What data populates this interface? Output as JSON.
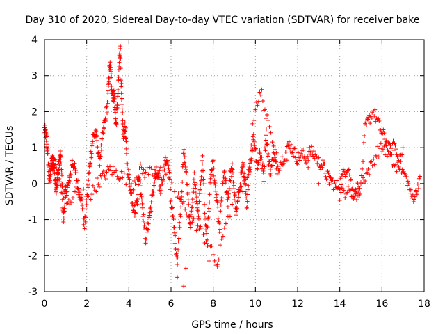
{
  "chart_data": {
    "type": "scatter",
    "title": "Day 310 of 2020, Sidereal Day-to-day VTEC variation (SDTVAR) for receiver bake",
    "xlabel": "GPS time / hours",
    "ylabel": "SDTVAR / TECUs",
    "xlim": [
      0,
      18
    ],
    "ylim": [
      -3,
      4
    ],
    "x_ticks": [
      0,
      2,
      4,
      6,
      8,
      10,
      12,
      14,
      16,
      18
    ],
    "y_ticks": [
      -3,
      -2,
      -1,
      0,
      1,
      2,
      3,
      4
    ],
    "x_tick_labels": [
      "0",
      "2",
      "4",
      "6",
      "8",
      "10",
      "12",
      "14",
      "16",
      "18"
    ],
    "y_tick_labels": [
      "-3",
      "-2",
      "-1",
      "0",
      "1",
      "2",
      "3",
      "4"
    ],
    "grid": true,
    "marker": "+",
    "marker_color": "#ff0000",
    "series": [
      {
        "name": "SDTVAR",
        "x": [
          0.0,
          0.05,
          0.1,
          0.15,
          0.2,
          0.25,
          0.3,
          0.35,
          0.4,
          0.45,
          0.5,
          0.55,
          0.6,
          0.65,
          0.7,
          0.75,
          0.8,
          0.85,
          0.9,
          0.95,
          1.0,
          1.1,
          1.2,
          1.3,
          1.4,
          1.5,
          1.6,
          1.7,
          1.8,
          1.9,
          2.0,
          2.1,
          2.2,
          2.3,
          2.4,
          2.5,
          2.6,
          2.7,
          2.8,
          2.9,
          3.0,
          3.05,
          3.1,
          3.15,
          3.2,
          3.25,
          3.3,
          3.35,
          3.4,
          3.45,
          3.5,
          3.55,
          3.6,
          3.65,
          3.7,
          3.75,
          3.8,
          3.85,
          3.9,
          4.0,
          4.1,
          4.2,
          4.3,
          4.4,
          4.5,
          4.6,
          4.7,
          4.8,
          4.9,
          5.0,
          5.1,
          5.2,
          5.3,
          5.4,
          5.5,
          5.6,
          5.7,
          5.8,
          5.9,
          6.0,
          6.1,
          6.2,
          6.3,
          6.4,
          6.5,
          6.6,
          6.7,
          6.8,
          6.9,
          7.0,
          7.1,
          7.2,
          7.3,
          7.4,
          7.5,
          7.6,
          7.7,
          7.8,
          7.9,
          8.0,
          8.1,
          8.2,
          8.3,
          8.4,
          8.5,
          8.6,
          8.7,
          8.8,
          8.9,
          9.0,
          9.1,
          9.2,
          9.3,
          9.4,
          9.5,
          9.6,
          9.7,
          9.8,
          9.9,
          10.0,
          10.1,
          10.2,
          10.3,
          10.4,
          10.5,
          10.6,
          10.7,
          10.8,
          10.9,
          11.0,
          11.2,
          11.4,
          11.6,
          11.8,
          12.0,
          12.2,
          12.4,
          12.6,
          12.8,
          13.0,
          13.2,
          13.4,
          13.6,
          13.8,
          14.0,
          14.2,
          14.4,
          14.6,
          14.8,
          15.0,
          15.2,
          15.4,
          15.6,
          15.8,
          16.0,
          16.2,
          16.4,
          16.6,
          16.8,
          17.0,
          17.2,
          17.4,
          17.6,
          17.8
        ],
        "y": [
          1.5,
          1.4,
          1.2,
          0.8,
          0.3,
          0.1,
          0.4,
          0.6,
          0.7,
          0.5,
          0.2,
          -0.2,
          0.0,
          0.3,
          0.6,
          0.8,
          0.5,
          -0.3,
          -1.0,
          -0.6,
          -0.2,
          -0.1,
          0.1,
          0.6,
          0.5,
          0.2,
          -0.1,
          -0.3,
          -0.6,
          -1.2,
          -0.5,
          0.2,
          0.8,
          1.3,
          1.4,
          1.2,
          0.6,
          1.0,
          1.5,
          1.8,
          2.3,
          2.9,
          3.3,
          3.0,
          2.6,
          2.4,
          2.5,
          2.0,
          1.6,
          2.2,
          2.7,
          3.5,
          3.7,
          2.4,
          1.8,
          1.2,
          1.6,
          1.4,
          0.6,
          0.2,
          -0.2,
          -0.6,
          -0.8,
          -0.4,
          0.2,
          -0.3,
          -1.0,
          -1.5,
          -1.2,
          -0.8,
          -0.4,
          0.0,
          0.3,
          0.1,
          -0.2,
          0.2,
          0.5,
          0.7,
          0.3,
          -0.5,
          -1.0,
          -1.6,
          -2.2,
          -1.2,
          -0.3,
          0.9,
          0.4,
          -0.3,
          -1.2,
          -0.7,
          0.2,
          -0.4,
          -1.0,
          0.1,
          0.7,
          -0.8,
          -1.6,
          -0.6,
          0.3,
          0.5,
          -0.2,
          -0.6,
          -1.4,
          -0.4,
          0.3,
          0.0,
          -0.5,
          0.2,
          0.4,
          -0.2,
          -0.9,
          -0.3,
          0.2,
          0.5,
          0.1,
          -0.8,
          0.3,
          0.7,
          1.3,
          1.0,
          0.4,
          0.9,
          0.6,
          0.2,
          1.5,
          0.8,
          0.3,
          0.6,
          0.8,
          0.4,
          0.6,
          0.8,
          1.1,
          0.9,
          0.7,
          0.8,
          0.7,
          0.9,
          0.8,
          0.6,
          0.5,
          0.2,
          0.1,
          -0.1,
          0.0,
          0.3,
          0.5,
          -0.2,
          -0.3,
          -0.1,
          1.5,
          1.8,
          2.0,
          1.7,
          1.4,
          1.2,
          0.9,
          1.1,
          0.6,
          0.3,
          0.1,
          -0.4,
          -0.3,
          0.2
        ],
        "x2": [
          0.3,
          0.5,
          0.7,
          0.9,
          1.2,
          1.5,
          2.2,
          2.5,
          2.8,
          3.1,
          3.4,
          3.7,
          4.2,
          4.5,
          4.8,
          5.2,
          5.5,
          6.3,
          6.6,
          7.0,
          7.4,
          7.8,
          8.2,
          8.6,
          9.2,
          9.6,
          10.0,
          10.3,
          10.6,
          11.0,
          14.0,
          14.3,
          14.6,
          14.9,
          15.2,
          15.5,
          15.8,
          16.1,
          16.4,
          16.7,
          17.0
        ],
        "y2": [
          0.3,
          0.6,
          0.1,
          -0.3,
          -0.6,
          -0.2,
          -0.3,
          0.0,
          0.2,
          0.4,
          0.3,
          0.2,
          0.0,
          0.4,
          0.3,
          0.4,
          0.3,
          -0.3,
          -0.6,
          -1.0,
          -1.3,
          -1.7,
          -2.3,
          -1.0,
          -0.4,
          0.1,
          2.2,
          2.5,
          1.6,
          1.0,
          -0.3,
          -0.2,
          -0.3,
          -0.1,
          0.2,
          0.5,
          0.9,
          1.0,
          0.7,
          0.4,
          1.0
        ],
        "annotations": [
          {
            "x": 6.6,
            "y": -2.85
          },
          {
            "x": 6.3,
            "y": -2.6
          },
          {
            "x": 7.8,
            "y": -2.15
          },
          {
            "x": 8.2,
            "y": -2.25
          },
          {
            "x": 6.7,
            "y": -2.35
          },
          {
            "x": 3.6,
            "y": 3.75
          }
        ]
      }
    ]
  }
}
